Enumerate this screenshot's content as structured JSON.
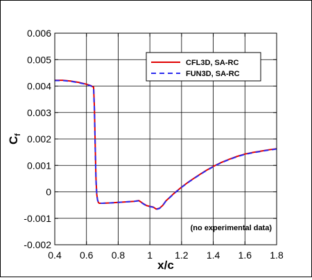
{
  "chart_data": {
    "type": "line",
    "xlabel": "x/c",
    "ylabel_main": "C",
    "ylabel_sub": "f",
    "xlim": [
      0.4,
      1.8
    ],
    "ylim": [
      -0.002,
      0.006
    ],
    "xticks": [
      0.4,
      0.6,
      0.8,
      1.0,
      1.2,
      1.4,
      1.6,
      1.8
    ],
    "xtick_labels": [
      "0.4",
      "0.6",
      "0.8",
      "1",
      "1.2",
      "1.4",
      "1.6",
      "1.8"
    ],
    "yticks": [
      -0.002,
      -0.001,
      0,
      0.001,
      0.002,
      0.003,
      0.004,
      0.005,
      0.006
    ],
    "ytick_labels": [
      "-0.002",
      "-0.001",
      "0",
      "0.001",
      "0.002",
      "0.003",
      "0.004",
      "0.005",
      "0.006"
    ],
    "grid": true,
    "legend_position": "top-right",
    "annotation": "(no experimental data)",
    "series": [
      {
        "name": "CFL3D, SA-RC",
        "color": "#e00000",
        "dash": "solid",
        "x": [
          0.4,
          0.45,
          0.5,
          0.55,
          0.6,
          0.63,
          0.645,
          0.65,
          0.655,
          0.66,
          0.665,
          0.67,
          0.675,
          0.68,
          0.7,
          0.75,
          0.8,
          0.85,
          0.9,
          0.93,
          0.96,
          0.98,
          1.0,
          1.02,
          1.04,
          1.06,
          1.08,
          1.1,
          1.15,
          1.2,
          1.25,
          1.3,
          1.35,
          1.4,
          1.45,
          1.5,
          1.55,
          1.6,
          1.65,
          1.7,
          1.75,
          1.8
        ],
        "y": [
          0.00422,
          0.00422,
          0.00419,
          0.00414,
          0.00407,
          0.00401,
          0.00396,
          0.0032,
          0.0018,
          0.0005,
          -0.0001,
          -0.0003,
          -0.0004,
          -0.00043,
          -0.00043,
          -0.00042,
          -0.0004,
          -0.00038,
          -0.00036,
          -0.00033,
          -0.00045,
          -0.00052,
          -0.00055,
          -0.00057,
          -0.00065,
          -0.00062,
          -0.00052,
          -0.00035,
          -7e-05,
          0.00018,
          0.0004,
          0.0006,
          0.00079,
          0.00096,
          0.00111,
          0.00123,
          0.00134,
          0.00143,
          0.00149,
          0.00154,
          0.00159,
          0.00163
        ]
      },
      {
        "name": "FUN3D, SA-RC",
        "color": "#2a2aee",
        "dash": "dashed",
        "x": [
          0.4,
          0.45,
          0.5,
          0.55,
          0.6,
          0.63,
          0.645,
          0.65,
          0.655,
          0.66,
          0.665,
          0.67,
          0.675,
          0.68,
          0.7,
          0.75,
          0.8,
          0.85,
          0.9,
          0.93,
          0.96,
          0.98,
          1.0,
          1.02,
          1.04,
          1.06,
          1.08,
          1.1,
          1.15,
          1.2,
          1.25,
          1.3,
          1.35,
          1.4,
          1.45,
          1.5,
          1.55,
          1.6,
          1.65,
          1.7,
          1.75,
          1.8
        ],
        "y": [
          0.00421,
          0.00421,
          0.00418,
          0.00413,
          0.00406,
          0.004,
          0.00395,
          0.0031,
          0.0017,
          0.00045,
          -0.00012,
          -0.00031,
          -0.0004,
          -0.00043,
          -0.00043,
          -0.00042,
          -0.0004,
          -0.00038,
          -0.00036,
          -0.00034,
          -0.00046,
          -0.00053,
          -0.00056,
          -0.00058,
          -0.00066,
          -0.00063,
          -0.00053,
          -0.00036,
          -8e-05,
          0.00017,
          0.00039,
          0.00059,
          0.00078,
          0.00095,
          0.0011,
          0.00122,
          0.00133,
          0.00142,
          0.00148,
          0.00153,
          0.00158,
          0.00162
        ]
      }
    ]
  }
}
